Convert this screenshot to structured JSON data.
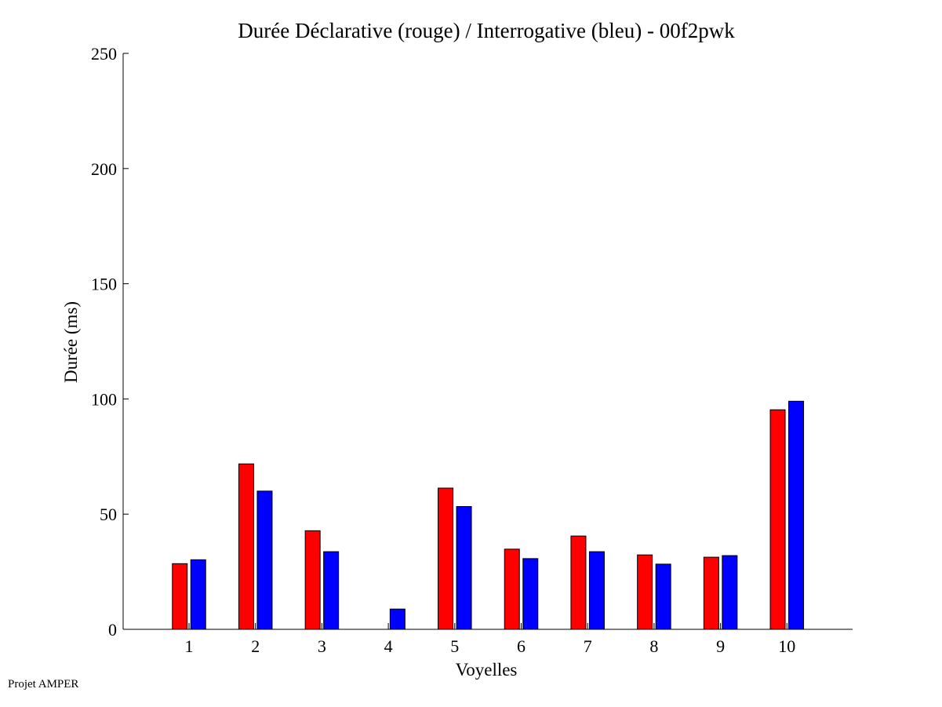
{
  "chart_data": {
    "type": "bar",
    "title": "Durée Déclarative (rouge) / Interrogative (bleu) - 00f2pwk",
    "xlabel": "Voyelles",
    "ylabel": "Durée (ms)",
    "ylim": [
      0,
      250
    ],
    "yticks": [
      0,
      50,
      100,
      150,
      200,
      250
    ],
    "categories": [
      "1",
      "2",
      "3",
      "4",
      "5",
      "6",
      "7",
      "8",
      "9",
      "10"
    ],
    "series": [
      {
        "values": [
          28.5,
          71.8,
          42.8,
          0,
          61.3,
          34.8,
          40.5,
          32.3,
          31.3,
          95.3
        ],
        "color": "#ff0000"
      },
      {
        "values": [
          30.2,
          60.0,
          33.7,
          8.8,
          53.3,
          30.7,
          33.7,
          28.3,
          32.0,
          99.0
        ],
        "color": "#0000ff"
      }
    ],
    "grid": false,
    "legend": "none"
  },
  "footer": {
    "note": "Projet AMPER"
  }
}
